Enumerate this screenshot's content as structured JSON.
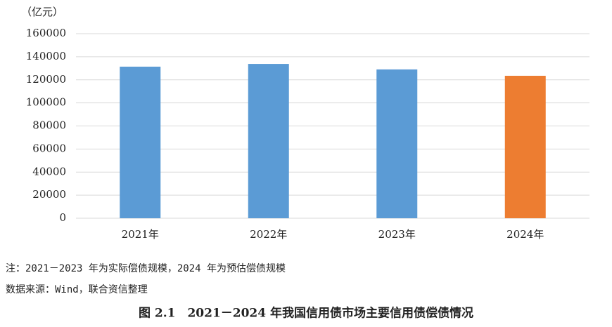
{
  "chart_data": {
    "type": "bar",
    "y_label": "（亿元）",
    "categories": [
      "2021年",
      "2022年",
      "2023年",
      "2024年"
    ],
    "values": [
      131400,
      133800,
      129000,
      123500
    ],
    "colors": [
      "#5b9bd5",
      "#5b9bd5",
      "#5b9bd5",
      "#ed7d31"
    ],
    "ylim": [
      0,
      160000
    ],
    "yticks": [
      0,
      20000,
      40000,
      60000,
      80000,
      100000,
      120000,
      140000,
      160000
    ],
    "grid": true,
    "notes": [
      "注：2021－2023 年为实际偿债规模，2024 年为预估偿债规模",
      "数据来源：Wind，联合资信整理"
    ],
    "caption": "图 2.1　2021－2024 年我国信用债市场主要信用债偿债情况"
  }
}
